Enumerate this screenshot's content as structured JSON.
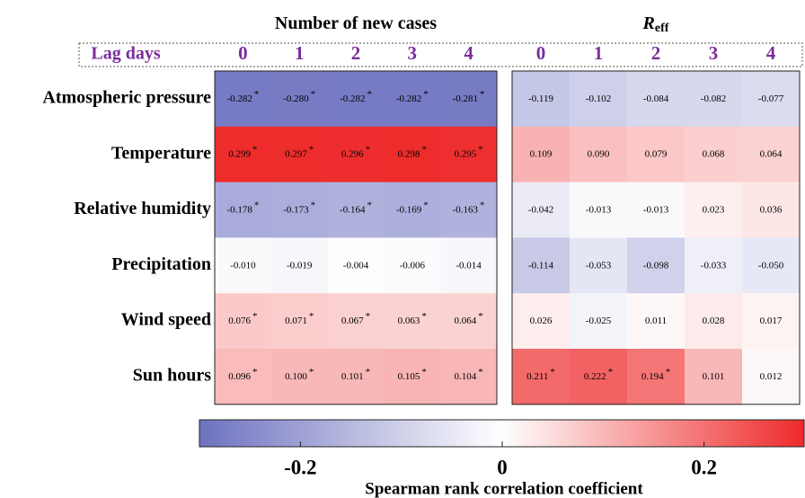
{
  "chart_data": {
    "type": "heatmap",
    "x_label": "Lag days",
    "x": [
      0,
      1,
      2,
      3,
      4
    ],
    "rows": [
      "Atmospheric pressure",
      "Temperature",
      "Relative humidity",
      "Precipitation",
      "Wind speed",
      "Sun hours"
    ],
    "significance_marker": "*",
    "panels": [
      {
        "title": "Number of new cases",
        "values": [
          [
            -0.282,
            -0.28,
            -0.282,
            -0.282,
            -0.281
          ],
          [
            0.299,
            0.297,
            0.296,
            0.298,
            0.295
          ],
          [
            -0.178,
            -0.173,
            -0.164,
            -0.169,
            -0.163
          ],
          [
            -0.01,
            -0.019,
            -0.004,
            -0.006,
            -0.014
          ],
          [
            0.076,
            0.071,
            0.067,
            0.063,
            0.064
          ],
          [
            0.096,
            0.1,
            0.101,
            0.105,
            0.104
          ]
        ],
        "value_labels": [
          [
            "-0.282",
            "-0.280",
            "-0.282",
            "-0.282",
            "-0.281"
          ],
          [
            "0.299",
            "0.297",
            "0.296",
            "0.298",
            "0.295"
          ],
          [
            "-0.178",
            "-0.173",
            "-0.164",
            "-0.169",
            "-0.163"
          ],
          [
            "-0.010",
            "-0.019",
            "-0.004",
            "-0.006",
            "-0.014"
          ],
          [
            "0.076",
            "0.071",
            "0.067",
            "0.063",
            "0.064"
          ],
          [
            "0.096",
            "0.100",
            "0.101",
            "0.105",
            "0.104"
          ]
        ],
        "significant": [
          [
            true,
            true,
            true,
            true,
            true
          ],
          [
            true,
            true,
            true,
            true,
            true
          ],
          [
            true,
            true,
            true,
            true,
            true
          ],
          [
            false,
            false,
            false,
            false,
            false
          ],
          [
            true,
            true,
            true,
            true,
            true
          ],
          [
            true,
            true,
            true,
            true,
            true
          ]
        ]
      },
      {
        "title": "R",
        "title_subscript": "eff",
        "values": [
          [
            -0.119,
            -0.102,
            -0.084,
            -0.082,
            -0.077
          ],
          [
            0.109,
            0.09,
            0.079,
            0.068,
            0.064
          ],
          [
            -0.042,
            -0.013,
            -0.013,
            0.023,
            0.036
          ],
          [
            -0.114,
            -0.053,
            -0.098,
            -0.033,
            -0.05
          ],
          [
            0.026,
            -0.025,
            0.011,
            0.028,
            0.017
          ],
          [
            0.211,
            0.222,
            0.194,
            0.101,
            0.012
          ]
        ],
        "value_labels": [
          [
            "-0.119",
            "-0.102",
            "-0.084",
            "-0.082",
            "-0.077"
          ],
          [
            "0.109",
            "0.090",
            "0.079",
            "0.068",
            "0.064"
          ],
          [
            "-0.042",
            "-0.013",
            "-0.013",
            "0.023",
            "0.036"
          ],
          [
            "-0.114",
            "-0.053",
            "-0.098",
            "-0.033",
            "-0.050"
          ],
          [
            "0.026",
            "-0.025",
            "0.011",
            "0.028",
            "0.017"
          ],
          [
            "0.211",
            "0.222",
            "0.194",
            "0.101",
            "0.012"
          ]
        ],
        "significant": [
          [
            false,
            false,
            false,
            false,
            false
          ],
          [
            false,
            false,
            false,
            false,
            false
          ],
          [
            false,
            false,
            false,
            false,
            false
          ],
          [
            false,
            false,
            false,
            false,
            false
          ],
          [
            false,
            false,
            false,
            false,
            false
          ],
          [
            true,
            true,
            true,
            false,
            false
          ]
        ]
      }
    ],
    "colorbar": {
      "label": "Spearman rank correlation coefficient",
      "clim": [
        -0.3,
        0.3
      ],
      "ticks": [
        -0.2,
        0,
        0.2
      ]
    },
    "colormap": {
      "low": "#6e72c0",
      "mid": "#ffffff",
      "high": "#ee2b2b"
    },
    "label_color": "#7b2d9b"
  }
}
